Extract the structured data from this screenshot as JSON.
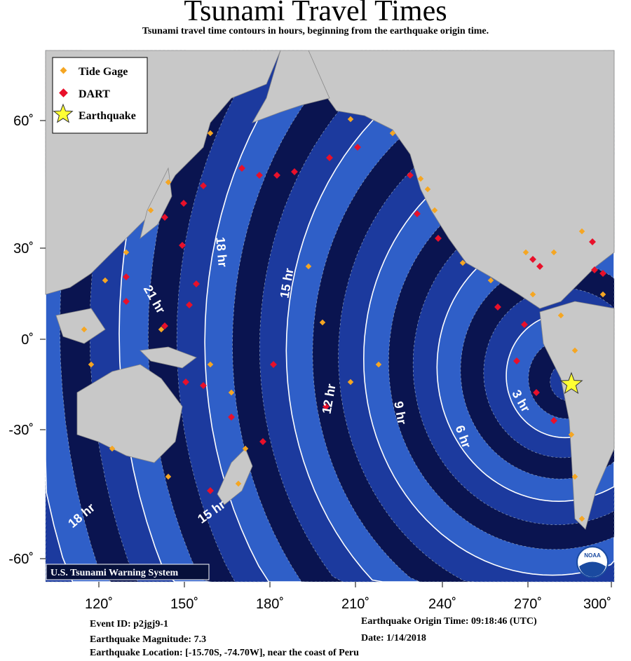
{
  "title": "Tsunami Travel Times",
  "subtitle": "Tsunami travel time contours in hours, beginning from the earthquake origin time.",
  "legend": [
    {
      "label": "Tide Gage",
      "symbol": "orange-diamond",
      "color": "#f5a623"
    },
    {
      "label": "DART",
      "symbol": "red-diamond",
      "color": "#e8102a"
    },
    {
      "label": "Earthquake",
      "symbol": "yellow-star",
      "color": "#ffff33"
    }
  ],
  "axes": {
    "lon_ticks": [
      "120˚",
      "150˚",
      "180˚",
      "210˚",
      "240˚",
      "270˚",
      "300˚"
    ],
    "lat_ticks": [
      "60˚",
      "30˚",
      "0˚",
      "-30˚",
      "-60˚"
    ]
  },
  "contour_labels": [
    "3 hr",
    "6 hr",
    "9 hr",
    "12 hr",
    "15 hr",
    "18 hr",
    "21 hr",
    "18 hr",
    "15 hr"
  ],
  "badge": "U.S. Tsunami Warning System",
  "logo": "NOAA",
  "colors": {
    "ocean_dark": "#0a1450",
    "ocean_mid": "#1c3a9e",
    "ocean_light": "#2f5fc8",
    "land": "#c8c8c8",
    "frame": "#06103a"
  },
  "footer": {
    "event_id": "Event ID: p2jgj9-1",
    "magnitude": "Earthquake Magnitude: 7.3",
    "location": "Earthquake Location: [-15.70S, -74.70W], near the coast of Peru",
    "origin_time": "Earthquake Origin Time: 09:18:46 (UTC)",
    "date": "Date: 1/14/2018"
  }
}
